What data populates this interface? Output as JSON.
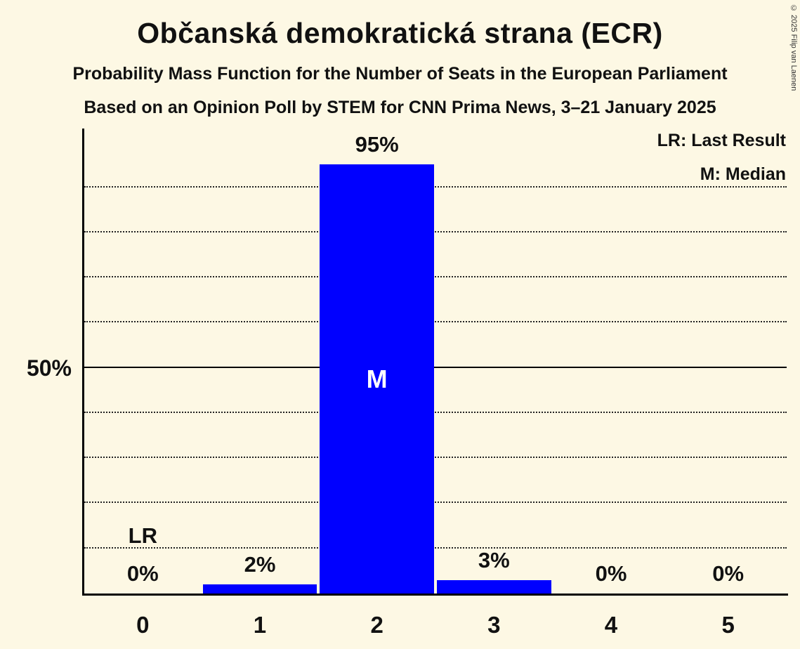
{
  "title": "Občanská demokratická strana (ECR)",
  "subtitle1": "Probability Mass Function for the Number of Seats in the European Parliament",
  "subtitle2": "Based on an Opinion Poll by STEM for CNN Prima News, 3–21 January 2025",
  "copyright": "© 2025 Filip van Laenen",
  "legend": {
    "lr": "LR: Last Result",
    "m": "M: Median"
  },
  "y_axis_tick": "50%",
  "chart_data": {
    "type": "bar",
    "title": "Občanská demokratická strana (ECR)",
    "xlabel": "Number of Seats in the European Parliament",
    "ylabel": "Probability Mass",
    "categories": [
      "0",
      "1",
      "2",
      "3",
      "4",
      "5"
    ],
    "values": [
      0,
      2,
      95,
      3,
      0,
      0
    ],
    "labels": [
      "0%",
      "2%",
      "95%",
      "3%",
      "0%",
      "0%"
    ],
    "median_index": 2,
    "median_marker": "M",
    "last_result_index": 0,
    "last_result_marker": "LR",
    "ylim": [
      0,
      103
    ],
    "gridlines_every": 10,
    "solid_line_at": 50,
    "grid": true,
    "legend_position": "top-right",
    "bar_color": "#0000ff",
    "background_color": "#fdf8e4",
    "text_color": "#111111",
    "median_text_color": "#ffffff"
  }
}
